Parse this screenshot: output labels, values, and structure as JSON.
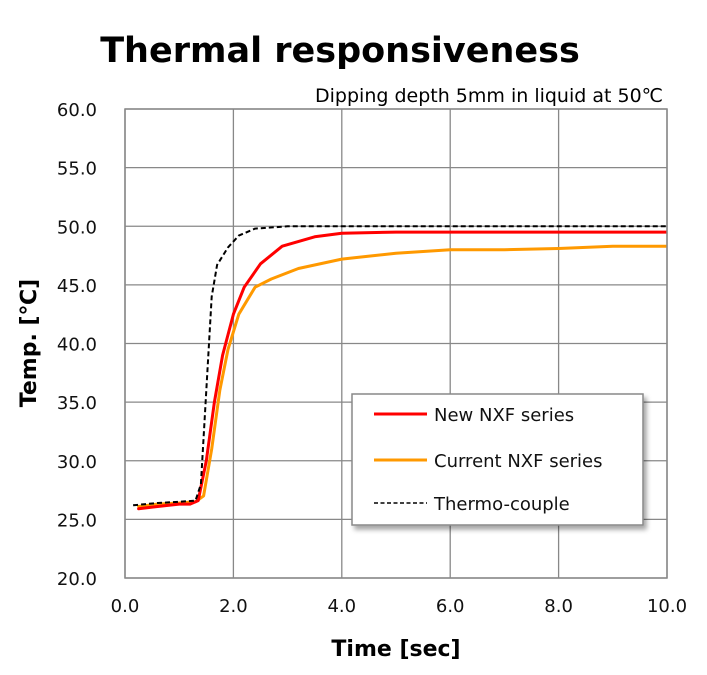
{
  "chart_data": {
    "type": "line",
    "title": "Thermal responsiveness",
    "subtitle": "Dipping depth 5mm in liquid at 50℃",
    "xlabel": "Time [sec]",
    "ylabel": "Temp. [℃]",
    "xlim": [
      0,
      10
    ],
    "ylim": [
      20,
      60
    ],
    "grid": true,
    "legend_position": "bottom-right",
    "x_ticks": [
      "0.0",
      "2.0",
      "4.0",
      "6.0",
      "8.0",
      "10.0"
    ],
    "y_ticks": [
      "20.0",
      "25.0",
      "30.0",
      "35.0",
      "40.0",
      "45.0",
      "50.0",
      "55.0",
      "60.0"
    ],
    "series": [
      {
        "name": "New NXF series",
        "color": "#ff0000",
        "style": "solid",
        "x": [
          0.25,
          0.6,
          1.0,
          1.2,
          1.35,
          1.5,
          1.65,
          1.8,
          2.0,
          2.2,
          2.5,
          2.9,
          3.5,
          4.0,
          5.0,
          6.0,
          7.0,
          8.0,
          9.0,
          10.0
        ],
        "y": [
          25.9,
          26.1,
          26.3,
          26.3,
          26.6,
          30.0,
          35.0,
          39.0,
          42.5,
          44.8,
          46.8,
          48.3,
          49.1,
          49.4,
          49.5,
          49.5,
          49.5,
          49.5,
          49.5,
          49.5
        ]
      },
      {
        "name": "Current NXF series",
        "color": "#ff9900",
        "style": "solid",
        "x": [
          0.25,
          0.6,
          1.0,
          1.3,
          1.45,
          1.6,
          1.75,
          1.9,
          2.1,
          2.4,
          2.7,
          3.2,
          4.0,
          5.0,
          6.0,
          7.0,
          8.0,
          9.0,
          10.0
        ],
        "y": [
          26.1,
          26.3,
          26.4,
          26.5,
          27.0,
          31.0,
          36.0,
          39.5,
          42.5,
          44.8,
          45.5,
          46.4,
          47.2,
          47.7,
          48.0,
          48.0,
          48.1,
          48.3,
          48.3
        ]
      },
      {
        "name": "Thermo-couple",
        "color": "#000000",
        "style": "dashed",
        "x": [
          0.15,
          0.6,
          1.0,
          1.3,
          1.4,
          1.5,
          1.6,
          1.7,
          1.9,
          2.1,
          2.4,
          3.0,
          4.0,
          6.0,
          8.0,
          10.0
        ],
        "y": [
          26.2,
          26.4,
          26.5,
          26.6,
          28.0,
          36.0,
          44.0,
          46.7,
          48.2,
          49.2,
          49.8,
          50.0,
          50.0,
          50.0,
          50.0,
          50.0
        ]
      }
    ]
  }
}
